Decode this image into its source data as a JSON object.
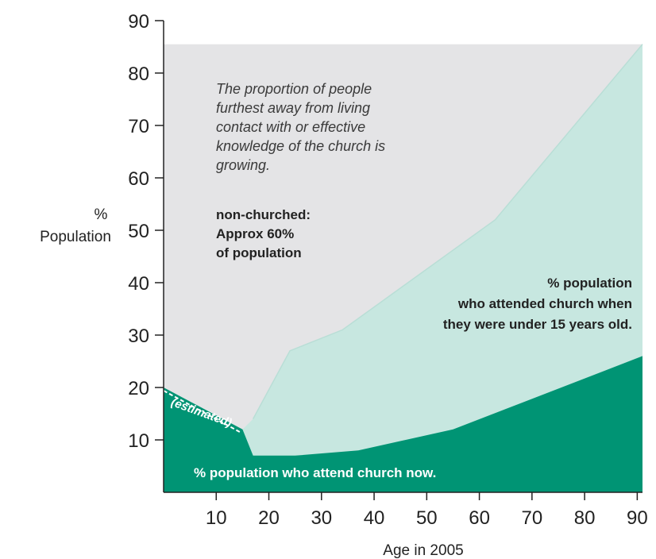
{
  "chart_data": {
    "type": "area",
    "xlabel": "Age in 2005",
    "ylabel": "% Population",
    "xlim": [
      0,
      91
    ],
    "ylim": [
      0,
      90
    ],
    "x_ticks": [
      10,
      20,
      30,
      40,
      50,
      60,
      70,
      80,
      90
    ],
    "y_ticks": [
      10,
      20,
      30,
      40,
      50,
      60,
      70,
      80,
      90
    ],
    "series": [
      {
        "name": "% population who attend church now.",
        "color": "#009474",
        "points": [
          [
            0,
            20
          ],
          [
            15,
            12
          ],
          [
            17,
            7
          ],
          [
            25,
            7
          ],
          [
            37,
            8
          ],
          [
            55,
            12
          ],
          [
            91,
            26
          ]
        ]
      },
      {
        "name": "% population who attended church when they were under 15 years old.",
        "color": "#c7e7e0",
        "points": [
          [
            0,
            20
          ],
          [
            15,
            12
          ],
          [
            17,
            14
          ],
          [
            24,
            27
          ],
          [
            34,
            31
          ],
          [
            63,
            52
          ],
          [
            91,
            85.5
          ]
        ]
      },
      {
        "name": "non-churched",
        "color": "#e4e4e6",
        "points": [
          [
            0,
            85.5
          ],
          [
            91,
            85.5
          ]
        ]
      }
    ],
    "annotations": {
      "note": [
        "The proportion of people",
        "furthest away from living",
        "contact with or effective",
        "knowledge of the church is",
        "growing."
      ],
      "nonchurched": [
        "non-churched:",
        "Approx 60%",
        "of population"
      ],
      "attended": [
        "% population",
        "who attended church when",
        "they were under 15 years old."
      ],
      "attend_now": "% population who attend church now.",
      "estimated": "(estimated)"
    }
  },
  "ylabel_lines": [
    "%",
    "Population"
  ]
}
